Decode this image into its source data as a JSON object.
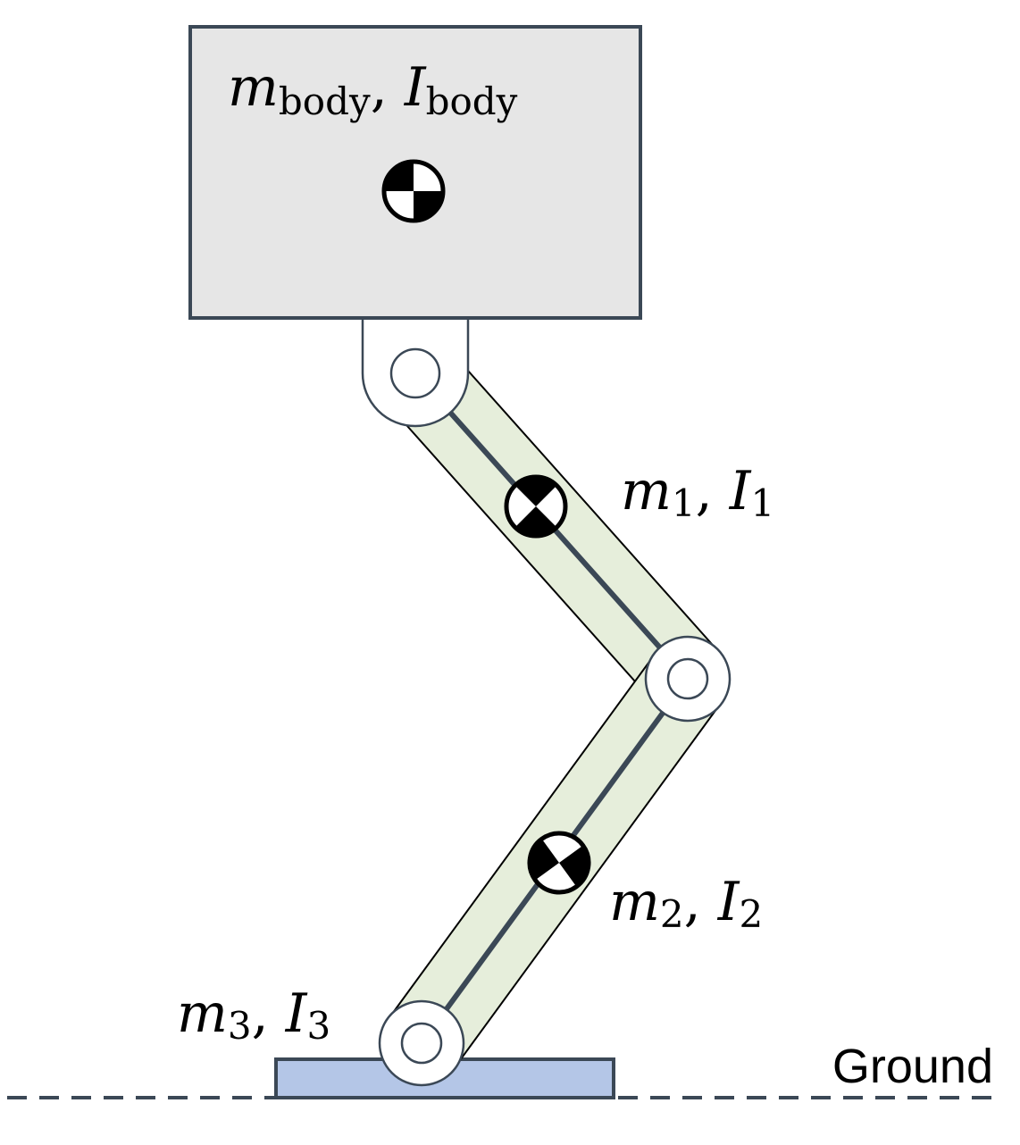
{
  "colors": {
    "body_fill": "#e6e6e6",
    "body_stroke": "#3b4856",
    "link_fill": "#e6eedb",
    "link_stroke": "#000000",
    "axis_line": "#3b4856",
    "joint_fill": "#ffffff",
    "joint_stroke": "#3b4856",
    "foot_fill": "#b4c6e7",
    "foot_stroke": "#3b4856",
    "ground_line": "#3b4856",
    "com_marker": "#000000"
  },
  "labels": {
    "body": {
      "m": "m",
      "m_sub": "body",
      "sep": ", ",
      "I": "I",
      "I_sub": "body"
    },
    "link1": {
      "m": "m",
      "m_sub": "1",
      "sep": ", ",
      "I": "I",
      "I_sub": "1"
    },
    "link2": {
      "m": "m",
      "m_sub": "2",
      "sep": ", ",
      "I": "I",
      "I_sub": "2"
    },
    "link3": {
      "m": "m",
      "m_sub": "3",
      "sep": ", ",
      "I": "I",
      "I_sub": "3"
    },
    "ground": "Ground"
  },
  "icons": {
    "com_marker": "center-of-mass-icon",
    "joint": "revolute-joint-icon"
  }
}
